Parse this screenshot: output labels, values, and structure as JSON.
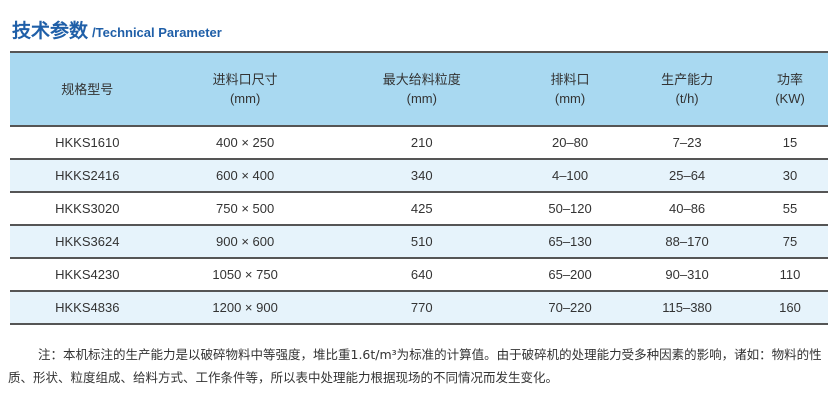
{
  "title": {
    "cn": "技术参数",
    "en": "/Technical Parameter"
  },
  "table": {
    "headers": [
      {
        "label": "规格型号",
        "unit": ""
      },
      {
        "label": "进料口尺寸",
        "unit": "(mm)"
      },
      {
        "label": "最大给料粒度",
        "unit": "(mm)"
      },
      {
        "label": "排料口",
        "unit": "(mm)"
      },
      {
        "label": "生产能力",
        "unit": "(t/h)"
      },
      {
        "label": "功率",
        "unit": "(KW)"
      }
    ],
    "rows": [
      [
        "HKKS1610",
        "400 × 250",
        "210",
        "20–80",
        "7–23",
        "15"
      ],
      [
        "HKKS2416",
        "600 × 400",
        "340",
        "4–100",
        "25–64",
        "30"
      ],
      [
        "HKKS3020",
        "750 × 500",
        "425",
        "50–120",
        "40–86",
        "55"
      ],
      [
        "HKKS3624",
        "900 × 600",
        "510",
        "65–130",
        "88–170",
        "75"
      ],
      [
        "HKKS4230",
        "1050 × 750",
        "640",
        "65–200",
        "90–310",
        "110"
      ],
      [
        "HKKS4836",
        "1200 × 900",
        "770",
        "70–220",
        "115–380",
        "160"
      ]
    ]
  },
  "note": "注：本机标注的生产能力是以破碎物料中等强度，堆比重1.6t/m³为标准的计算值。由于破碎机的处理能力受多种因素的影响，诸如：物料的性质、形状、粒度组成、给料方式、工作条件等，所以表中处理能力根据现场的不同情况而发生变化。",
  "colors": {
    "title": "#1f5fa8",
    "header_bg": "#a9d9f1",
    "alt_row_bg": "#e6f3fb"
  }
}
